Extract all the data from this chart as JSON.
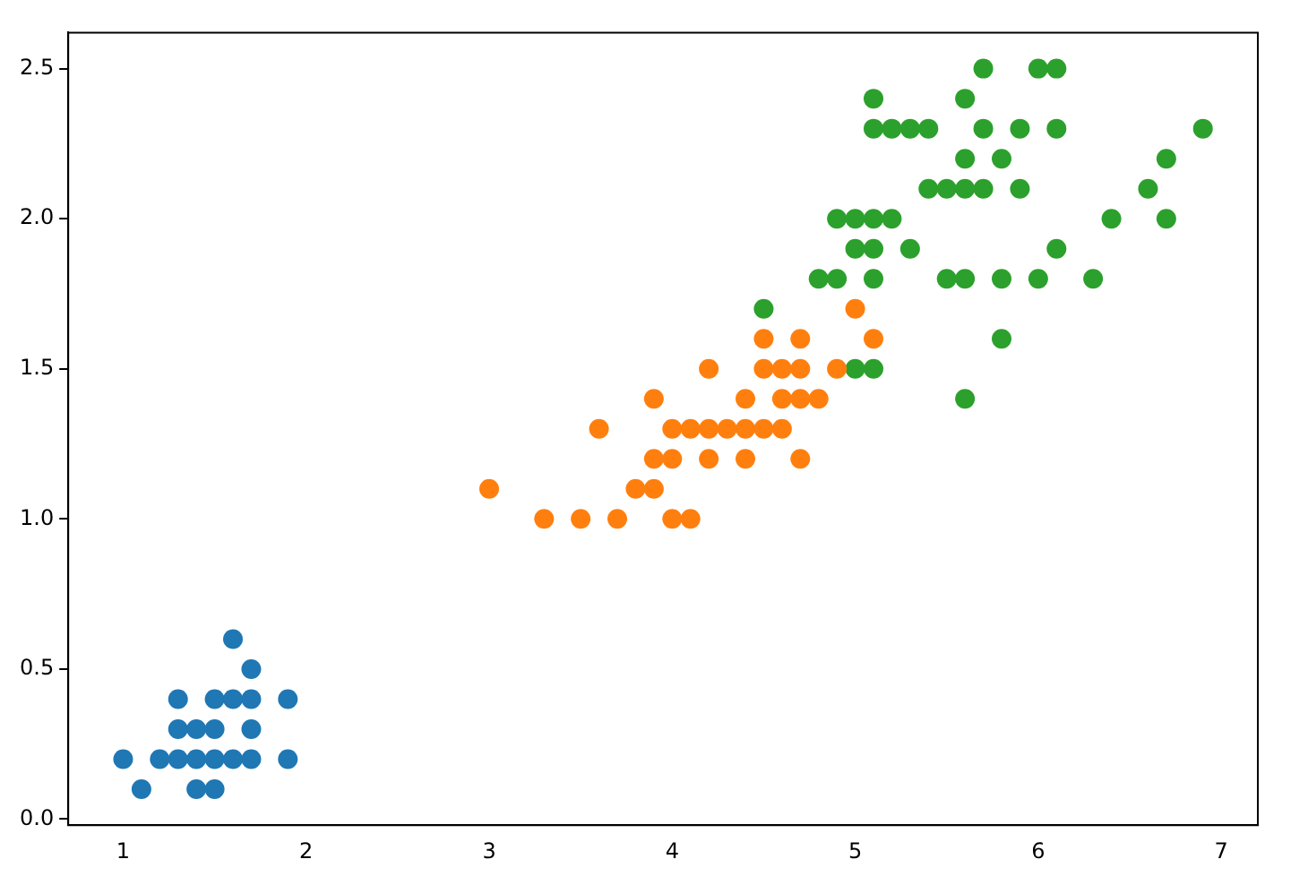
{
  "chart_data": {
    "type": "scatter",
    "marker": "circle",
    "xlim": [
      0.7,
      7.2
    ],
    "xticks": [
      1,
      2,
      3,
      4,
      5,
      6,
      7
    ],
    "ylim": [
      -0.02,
      2.62
    ],
    "yticks": [
      {
        "value": 0,
        "label": "0.0"
      },
      {
        "value": 0.5,
        "label": "0.5"
      },
      {
        "value": 1,
        "label": "1.0"
      },
      {
        "value": 1.5,
        "label": "1.5"
      },
      {
        "value": 2,
        "label": "2.0"
      },
      {
        "value": 2.5,
        "label": "2.5"
      }
    ],
    "series": [
      {
        "color": "#1f77b4",
        "x": [
          1.4,
          1.3,
          1.5,
          1.7,
          1.4,
          1.5,
          1.6,
          1.4,
          1.1,
          1.2,
          1.5,
          1.3,
          1.7,
          1.5,
          1.7,
          1.0,
          1.7,
          1.9,
          1.6,
          1.3,
          1.6,
          1.9
        ],
        "values": [
          0.2,
          0.2,
          0.2,
          0.4,
          0.3,
          0.1,
          0.2,
          0.1,
          0.1,
          0.2,
          0.4,
          0.4,
          0.3,
          0.3,
          0.2,
          0.2,
          0.5,
          0.2,
          0.4,
          0.3,
          0.6,
          0.4
        ]
      },
      {
        "color": "#ff7f0e",
        "x": [
          4.7,
          4.5,
          4.9,
          4.0,
          4.6,
          4.5,
          4.7,
          3.3,
          4.6,
          3.9,
          3.5,
          4.2,
          4.0,
          3.6,
          4.4,
          4.1,
          3.9,
          4.7,
          4.3,
          4.8,
          5.0,
          3.8,
          3.7,
          3.9,
          5.1,
          4.5,
          4.7,
          4.4,
          4.1,
          4.4,
          4.6,
          4.0,
          4.2,
          4.2,
          3.0
        ],
        "values": [
          1.4,
          1.5,
          1.5,
          1.3,
          1.5,
          1.3,
          1.6,
          1.0,
          1.3,
          1.4,
          1.0,
          1.5,
          1.0,
          1.3,
          1.4,
          1.0,
          1.1,
          1.2,
          1.3,
          1.4,
          1.7,
          1.1,
          1.0,
          1.2,
          1.6,
          1.6,
          1.5,
          1.3,
          1.3,
          1.2,
          1.4,
          1.2,
          1.3,
          1.2,
          1.1
        ]
      },
      {
        "color": "#2ca02c",
        "x": [
          6.0,
          5.1,
          5.9,
          5.6,
          5.8,
          6.6,
          4.5,
          6.3,
          5.8,
          6.1,
          5.1,
          5.3,
          5.5,
          5.0,
          5.1,
          5.3,
          5.5,
          6.7,
          6.9,
          5.0,
          5.7,
          4.9,
          6.7,
          4.9,
          5.7,
          6.0,
          4.8,
          5.6,
          5.8,
          6.1,
          6.4,
          5.6,
          5.1,
          5.6,
          6.1,
          5.6,
          5.4,
          5.1,
          5.9,
          5.7,
          5.2,
          5.0,
          5.2,
          5.4,
          5.1
        ],
        "values": [
          2.5,
          1.9,
          2.1,
          1.8,
          2.2,
          2.1,
          1.7,
          1.8,
          1.8,
          2.5,
          2.0,
          1.9,
          2.1,
          2.0,
          2.4,
          2.3,
          1.8,
          2.2,
          2.3,
          1.5,
          2.3,
          2.0,
          2.0,
          1.8,
          2.1,
          1.8,
          1.8,
          2.1,
          1.6,
          1.9,
          2.0,
          2.2,
          1.5,
          1.4,
          2.3,
          2.4,
          2.1,
          2.3,
          2.3,
          2.5,
          2.3,
          1.9,
          2.0,
          2.3,
          1.8
        ]
      }
    ]
  }
}
